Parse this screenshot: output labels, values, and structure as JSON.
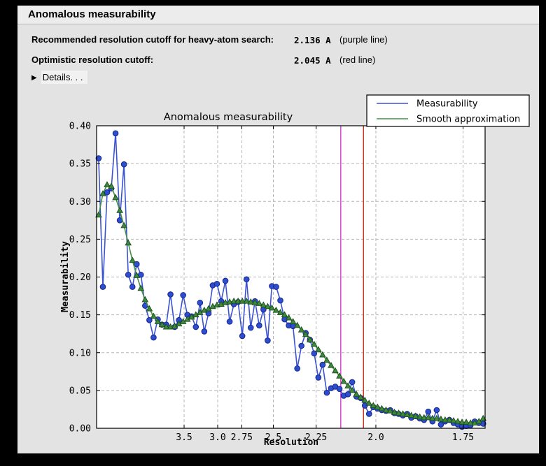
{
  "panel": {
    "title": "Anomalous measurability",
    "rows": [
      {
        "label": "Recommended resolution cutoff for heavy-atom search:",
        "value": "2.136 A",
        "note": "(purple line)"
      },
      {
        "label": "Optimistic resolution cutoff:",
        "value": "2.045 A",
        "note": "(red line)"
      }
    ],
    "details_label": "Details. . ."
  },
  "chart_data": {
    "type": "line",
    "title": "Anomalous measurability",
    "xlabel": "Resolution",
    "ylabel": "Measurability",
    "grid": true,
    "legend_position": "top-right",
    "x_axis_note": "x axis is linear in 1/d^2 (d = resolution in Angstrom); tick labels show d",
    "x_ticks_A": [
      "3.5",
      "3.0",
      "2.75",
      "2.5",
      "2.25",
      "2.0",
      "1.75"
    ],
    "y_ticks": [
      0.0,
      0.05,
      0.1,
      0.15,
      0.2,
      0.25,
      0.3,
      0.35,
      0.4
    ],
    "ylim": [
      0.0,
      0.4
    ],
    "x_range_inv_d_sq": [
      0.0048,
      0.3459
    ],
    "colors": {
      "plot_bg": "#ffffff",
      "figure_bg": "#e3e3e3",
      "grid": "#b5b5b5",
      "axis": "#000000",
      "measurability_blue": "#3a53d2",
      "smooth_green": "#449044",
      "purple_cutoff_line": "#d33bd3",
      "red_cutoff_line": "#cc2d10"
    },
    "x_inv_d_sq": [
      0.0066,
      0.01031,
      0.01402,
      0.01773,
      0.02144,
      0.02515,
      0.02886,
      0.03257,
      0.03628,
      0.03999,
      0.0437,
      0.04741,
      0.05112,
      0.05483,
      0.05854,
      0.06225,
      0.06596,
      0.06967,
      0.07338,
      0.07709,
      0.0808,
      0.08451,
      0.08822,
      0.09193,
      0.09564,
      0.09935,
      0.10306,
      0.10677,
      0.11048,
      0.11419,
      0.1179,
      0.12161,
      0.12532,
      0.12903,
      0.13274,
      0.13645,
      0.14016,
      0.14387,
      0.14758,
      0.15129,
      0.155,
      0.15871,
      0.16242,
      0.16613,
      0.16984,
      0.17355,
      0.17726,
      0.18097,
      0.18468,
      0.18839,
      0.1921,
      0.19581,
      0.19952,
      0.20323,
      0.20694,
      0.21065,
      0.21436,
      0.21807,
      0.22178,
      0.22549,
      0.2292,
      0.23291,
      0.23662,
      0.24033,
      0.24404,
      0.24775,
      0.25146,
      0.25517,
      0.25888,
      0.26259,
      0.2663,
      0.27001,
      0.27372,
      0.27743,
      0.28114,
      0.28485,
      0.28856,
      0.29227,
      0.29598,
      0.29969,
      0.3034,
      0.30711,
      0.31082,
      0.31453,
      0.31824,
      0.32195,
      0.32566,
      0.32937,
      0.33308,
      0.33679,
      0.3405,
      0.34421
    ],
    "series": [
      {
        "name": "Measurability",
        "color": "#3a53d2",
        "marker": "circle",
        "marker_fill": "#2d4ecf",
        "marker_edge": "#16248f",
        "values": [
          0.357,
          0.187,
          0.312,
          0.317,
          0.39,
          0.275,
          0.349,
          0.203,
          0.187,
          0.217,
          0.203,
          0.162,
          0.143,
          0.12,
          0.144,
          0.137,
          0.137,
          0.177,
          0.134,
          0.143,
          0.176,
          0.15,
          0.148,
          0.134,
          0.166,
          0.128,
          0.152,
          0.189,
          0.191,
          0.168,
          0.195,
          0.141,
          0.164,
          0.167,
          0.122,
          0.197,
          0.133,
          0.168,
          0.136,
          0.157,
          0.116,
          0.188,
          0.187,
          0.169,
          0.144,
          0.136,
          0.135,
          0.079,
          0.109,
          0.126,
          0.117,
          0.099,
          0.067,
          0.084,
          0.047,
          0.053,
          0.055,
          0.052,
          0.043,
          0.045,
          0.061,
          0.042,
          0.04,
          0.03,
          0.019,
          0.028,
          0.026,
          0.024,
          0.023,
          0.024,
          0.02,
          0.019,
          0.017,
          0.019,
          0.014,
          0.016,
          0.013,
          0.011,
          0.022,
          0.009,
          0.024,
          0.005,
          0.009,
          0.011,
          0.007,
          0.005,
          0.002,
          0.003,
          0.004,
          0.009,
          0.007,
          0.006
        ]
      },
      {
        "name": "Smooth approximation",
        "color": "#449044",
        "marker": "triangle",
        "marker_fill": "#3c8c3c",
        "marker_edge": "#205020",
        "values": [
          0.282,
          0.31,
          0.322,
          0.32,
          0.305,
          0.288,
          0.268,
          0.245,
          0.222,
          0.202,
          0.185,
          0.17,
          0.158,
          0.148,
          0.141,
          0.137,
          0.134,
          0.134,
          0.135,
          0.138,
          0.141,
          0.144,
          0.147,
          0.15,
          0.153,
          0.156,
          0.158,
          0.161,
          0.163,
          0.164,
          0.166,
          0.167,
          0.168,
          0.168,
          0.168,
          0.168,
          0.167,
          0.166,
          0.165,
          0.163,
          0.161,
          0.159,
          0.156,
          0.153,
          0.15,
          0.146,
          0.141,
          0.136,
          0.13,
          0.124,
          0.117,
          0.111,
          0.104,
          0.097,
          0.09,
          0.083,
          0.076,
          0.069,
          0.062,
          0.056,
          0.05,
          0.045,
          0.041,
          0.037,
          0.033,
          0.03,
          0.028,
          0.026,
          0.024,
          0.023,
          0.021,
          0.02,
          0.019,
          0.018,
          0.017,
          0.016,
          0.015,
          0.014,
          0.014,
          0.013,
          0.013,
          0.012,
          0.011,
          0.011,
          0.01,
          0.009,
          0.008,
          0.008,
          0.007,
          0.007,
          0.009,
          0.013
        ]
      }
    ],
    "vlines": [
      {
        "name": "purple-cutoff-line",
        "resolution_A": 2.136,
        "x_inv_d_sq": 0.21918,
        "color": "#d33bd3"
      },
      {
        "name": "red-cutoff-line",
        "resolution_A": 2.045,
        "x_inv_d_sq": 0.23912,
        "color": "#cc2d10"
      }
    ]
  }
}
